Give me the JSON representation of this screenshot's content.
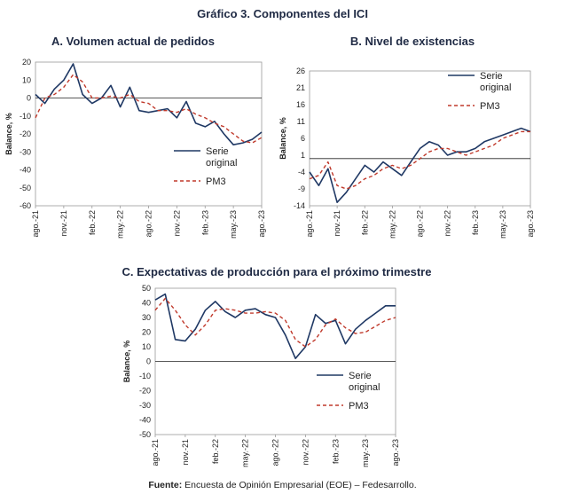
{
  "figure_title": "Gráfico 3. Componentes del ICI",
  "source": {
    "label": "Fuente:",
    "text": " Encuesta de Opinión Empresarial (EOE) – Fedesarrollo."
  },
  "legend": {
    "serie_line1": "Serie",
    "serie_line2": "original",
    "pm3": "PM3"
  },
  "colors": {
    "serie": "#1f3864",
    "pm3": "#c0392b",
    "axis": "#999999",
    "zero_line": "#222222"
  },
  "chart_data": [
    {
      "type": "line",
      "panel": "A",
      "title": "A. Volumen actual de pedidos",
      "ylabel": "Balance, %",
      "ylim": [
        -60,
        20
      ],
      "yticks": [
        20,
        10,
        0,
        -10,
        -20,
        -30,
        -40,
        -50,
        -60
      ],
      "xlim": [
        0,
        24
      ],
      "xticks": [
        0,
        3,
        6,
        9,
        12,
        15,
        18,
        21,
        24
      ],
      "xtick_labels": [
        "ago.-21",
        "nov.-21",
        "feb.-22",
        "may.-22",
        "ago.-22",
        "nov.-22",
        "feb.-23",
        "may.-23",
        "ago.-23"
      ],
      "legend_position": "center-right",
      "series": [
        {
          "name": "Serie original",
          "style": "solid",
          "x": [
            0,
            1,
            2,
            3,
            4,
            5,
            6,
            7,
            8,
            9,
            10,
            11,
            12,
            13,
            14,
            15,
            16,
            17,
            18,
            19,
            20,
            21,
            22,
            23,
            24
          ],
          "values": [
            2,
            -3,
            5,
            10,
            19,
            2,
            -3,
            0,
            7,
            -5,
            6,
            -7,
            -8,
            -7,
            -6,
            -11,
            -2,
            -14,
            -16,
            -13,
            -20,
            -26,
            -25,
            -23,
            -19
          ]
        },
        {
          "name": "PM3",
          "style": "dashed",
          "x": [
            0,
            1,
            2,
            3,
            4,
            5,
            6,
            7,
            8,
            9,
            10,
            11,
            12,
            13,
            14,
            15,
            16,
            17,
            18,
            19,
            20,
            21,
            22,
            23,
            24
          ],
          "values": [
            -11,
            0,
            2,
            6,
            13,
            9,
            0,
            0,
            1,
            0,
            2,
            -2,
            -3,
            -7,
            -7,
            -8,
            -6,
            -9,
            -11,
            -14,
            -16,
            -20,
            -24,
            -25,
            -22
          ]
        }
      ]
    },
    {
      "type": "line",
      "panel": "B",
      "title": "B. Nivel de existencias",
      "ylabel": "Balance, %",
      "ylim": [
        -14,
        26
      ],
      "yticks": [
        26,
        21,
        16,
        11,
        6,
        1,
        -4,
        -9,
        -14
      ],
      "xlim": [
        0,
        24
      ],
      "xticks": [
        0,
        3,
        6,
        9,
        12,
        15,
        18,
        21,
        24
      ],
      "xtick_labels": [
        "ago.-21",
        "nov.-21",
        "feb.-22",
        "may.-22",
        "ago.-22",
        "nov.-22",
        "feb.-23",
        "may.-23",
        "ago.-23"
      ],
      "legend_position": "top-right",
      "series": [
        {
          "name": "Serie original",
          "style": "solid",
          "x": [
            0,
            1,
            2,
            3,
            4,
            5,
            6,
            7,
            8,
            9,
            10,
            11,
            12,
            13,
            14,
            15,
            16,
            17,
            18,
            19,
            20,
            21,
            22,
            23,
            24
          ],
          "values": [
            -4,
            -8,
            -3,
            -13,
            -10,
            -6,
            -2,
            -4,
            -1,
            -3,
            -5,
            -1,
            3,
            5,
            4,
            1,
            2,
            2,
            3,
            5,
            6,
            7,
            8,
            9,
            8
          ]
        },
        {
          "name": "PM3",
          "style": "dashed",
          "x": [
            0,
            1,
            2,
            3,
            4,
            5,
            6,
            7,
            8,
            9,
            10,
            11,
            12,
            13,
            14,
            15,
            16,
            17,
            18,
            19,
            20,
            21,
            22,
            23,
            24
          ],
          "values": [
            -6,
            -5,
            -1,
            -8,
            -9,
            -8,
            -6,
            -5,
            -3,
            -2,
            -3,
            -2,
            0,
            2,
            3,
            3,
            2,
            1,
            2,
            3,
            4,
            6,
            7,
            8,
            8
          ]
        }
      ]
    },
    {
      "type": "line",
      "panel": "C",
      "title": "C. Expectativas de producción para el próximo trimestre",
      "ylabel": "Balance, %",
      "ylim": [
        -50,
        50
      ],
      "yticks": [
        50,
        40,
        30,
        20,
        10,
        0,
        -10,
        -20,
        -30,
        -40,
        -50
      ],
      "xlim": [
        0,
        24
      ],
      "xticks": [
        0,
        3,
        6,
        9,
        12,
        15,
        18,
        21,
        24
      ],
      "xtick_labels": [
        "ago.-21",
        "nov.-21",
        "feb.-22",
        "may.-22",
        "ago.-22",
        "nov.-22",
        "feb.-23",
        "may.-23",
        "ago.-23"
      ],
      "legend_position": "center-right",
      "series": [
        {
          "name": "Serie original",
          "style": "solid",
          "x": [
            0,
            1,
            2,
            3,
            4,
            5,
            6,
            7,
            8,
            9,
            10,
            11,
            12,
            13,
            14,
            15,
            16,
            17,
            18,
            19,
            20,
            21,
            22,
            23,
            24
          ],
          "values": [
            42,
            46,
            15,
            14,
            22,
            35,
            41,
            34,
            30,
            35,
            36,
            32,
            30,
            18,
            2,
            10,
            32,
            26,
            28,
            12,
            22,
            28,
            33,
            38,
            38
          ]
        },
        {
          "name": "PM3",
          "style": "dashed",
          "x": [
            0,
            1,
            2,
            3,
            4,
            5,
            6,
            7,
            8,
            9,
            10,
            11,
            12,
            13,
            14,
            15,
            16,
            17,
            18,
            19,
            20,
            21,
            22,
            23,
            24
          ],
          "values": [
            35,
            43,
            35,
            25,
            18,
            25,
            35,
            36,
            35,
            33,
            33,
            34,
            33,
            28,
            15,
            10,
            15,
            25,
            29,
            23,
            19,
            20,
            24,
            28,
            30
          ]
        }
      ]
    }
  ]
}
